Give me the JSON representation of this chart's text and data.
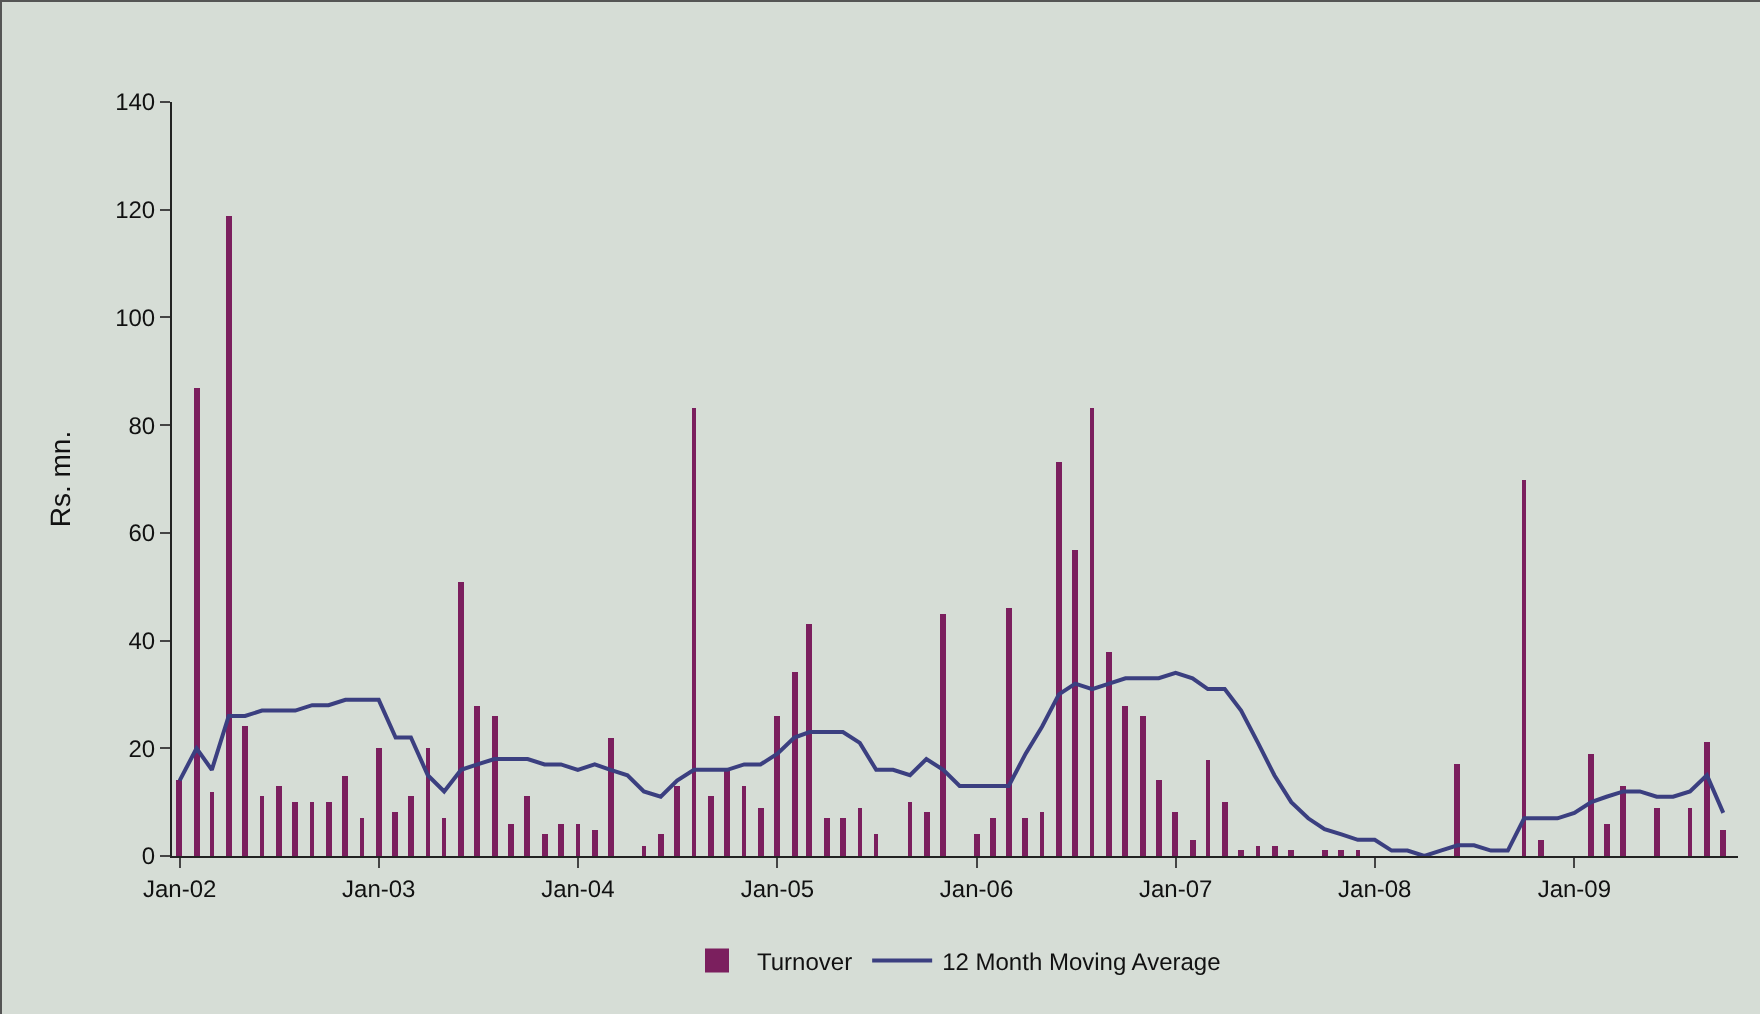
{
  "chart_data": {
    "type": "bar",
    "ylabel": "Rs. mn.",
    "x": [
      "2002-01",
      "2002-02",
      "2002-03",
      "2002-04",
      "2002-05",
      "2002-06",
      "2002-07",
      "2002-08",
      "2002-09",
      "2002-10",
      "2002-11",
      "2002-12",
      "2003-01",
      "2003-02",
      "2003-03",
      "2003-04",
      "2003-05",
      "2003-06",
      "2003-07",
      "2003-08",
      "2003-09",
      "2003-10",
      "2003-11",
      "2003-12",
      "2004-01",
      "2004-02",
      "2004-03",
      "2004-04",
      "2004-05",
      "2004-06",
      "2004-07",
      "2004-08",
      "2004-09",
      "2004-10",
      "2004-11",
      "2004-12",
      "2005-01",
      "2005-02",
      "2005-03",
      "2005-04",
      "2005-05",
      "2005-06",
      "2005-07",
      "2005-08",
      "2005-09",
      "2005-10",
      "2005-11",
      "2005-12",
      "2006-01",
      "2006-02",
      "2006-03",
      "2006-04",
      "2006-05",
      "2006-06",
      "2006-07",
      "2006-08",
      "2006-09",
      "2006-10",
      "2006-11",
      "2006-12",
      "2007-01",
      "2007-02",
      "2007-03",
      "2007-04",
      "2007-05",
      "2007-06",
      "2007-07",
      "2007-08",
      "2007-09",
      "2007-10",
      "2007-11",
      "2007-12",
      "2008-01",
      "2008-02",
      "2008-03",
      "2008-04",
      "2008-05",
      "2008-06",
      "2008-07",
      "2008-08",
      "2008-09",
      "2008-10",
      "2008-11",
      "2008-12",
      "2009-01",
      "2009-02",
      "2009-03",
      "2009-04",
      "2009-05",
      "2009-06",
      "2009-07",
      "2009-08",
      "2009-09",
      "2009-10"
    ],
    "series": [
      {
        "name": "Turnover",
        "color": "#7b1f5e",
        "values": [
          14,
          87,
          12,
          119,
          24,
          11,
          13,
          10,
          10,
          10,
          15,
          7,
          20,
          8,
          11,
          20,
          7,
          51,
          28,
          26,
          6,
          11,
          4,
          6,
          6,
          5,
          22,
          0,
          2,
          4,
          13,
          83,
          11,
          16,
          13,
          9,
          26,
          34,
          43,
          7,
          7,
          9,
          4,
          0,
          10,
          8,
          45,
          0,
          4,
          7,
          46,
          7,
          8,
          73,
          57,
          83,
          38,
          28,
          26,
          14,
          8,
          3,
          18,
          10,
          1,
          2,
          2,
          1,
          0,
          1,
          1,
          1,
          0,
          0,
          0,
          0,
          0,
          17,
          0,
          0,
          0,
          70,
          3,
          0,
          0,
          19,
          6,
          13,
          0,
          9,
          0,
          9,
          21,
          5
        ]
      },
      {
        "name": "12 Month Moving Average",
        "type": "line",
        "color": "#3b3f80",
        "values": [
          14,
          20,
          16,
          26,
          26,
          27,
          27,
          27,
          28,
          28,
          29,
          29,
          29,
          22,
          22,
          15,
          12,
          16,
          17,
          18,
          18,
          18,
          17,
          17,
          16,
          17,
          16,
          15,
          12,
          11,
          14,
          16,
          16,
          16,
          17,
          17,
          19,
          22,
          23,
          23,
          23,
          21,
          16,
          16,
          15,
          18,
          16,
          13,
          13,
          13,
          13,
          19,
          24,
          30,
          32,
          31,
          32,
          33,
          33,
          33,
          34,
          33,
          31,
          31,
          27,
          21,
          15,
          10,
          7,
          5,
          4,
          3,
          3,
          1,
          1,
          0,
          1,
          2,
          2,
          1,
          1,
          7,
          7,
          7,
          8,
          10,
          11,
          12,
          12,
          11,
          11,
          12,
          15,
          8
        ]
      }
    ],
    "xlim": [
      "2001-12-18",
      "2009-10-28"
    ],
    "xticks": [
      {
        "value": "2002-01",
        "label": "Jan-02"
      },
      {
        "value": "2003-01",
        "label": "Jan-03"
      },
      {
        "value": "2004-01",
        "label": "Jan-04"
      },
      {
        "value": "2005-01",
        "label": "Jan-05"
      },
      {
        "value": "2006-01",
        "label": "Jan-06"
      },
      {
        "value": "2007-01",
        "label": "Jan-07"
      },
      {
        "value": "2008-01",
        "label": "Jan-08"
      },
      {
        "value": "2009-01",
        "label": "Jan-09"
      }
    ],
    "ylim": [
      0,
      140
    ],
    "yticks": [
      0,
      20,
      40,
      60,
      80,
      100,
      120,
      140
    ],
    "grid": false,
    "legend": "bottom"
  }
}
